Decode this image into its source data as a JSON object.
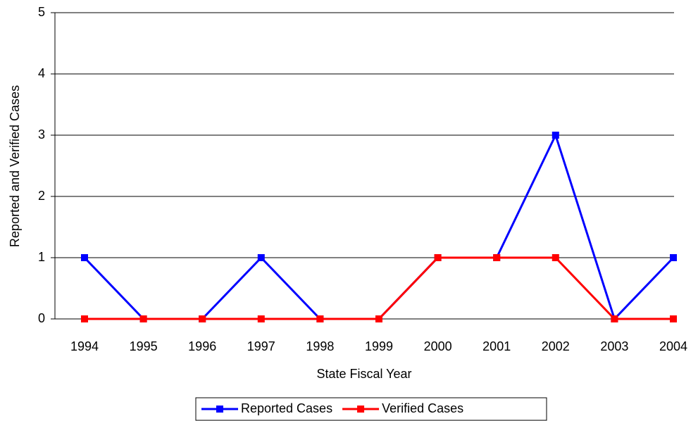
{
  "chart_data": {
    "type": "line",
    "x_label": "State Fiscal Year",
    "y_label": "Reported and Verified Cases",
    "categories": [
      "1994",
      "1995",
      "1996",
      "1997",
      "1998",
      "1999",
      "2000",
      "2001",
      "2002",
      "2003",
      "2004"
    ],
    "series": [
      {
        "name": "Reported Cases",
        "color": "#0000ff",
        "values": [
          1,
          0,
          0,
          1,
          0,
          0,
          1,
          1,
          3,
          0,
          1
        ]
      },
      {
        "name": "Verified Cases",
        "color": "#ff0000",
        "values": [
          0,
          0,
          0,
          0,
          0,
          0,
          1,
          1,
          1,
          0,
          0
        ]
      }
    ],
    "ylim": [
      0,
      5
    ],
    "yticks": [
      0,
      1,
      2,
      3,
      4,
      5
    ],
    "grid": true,
    "legend": "bottom"
  }
}
